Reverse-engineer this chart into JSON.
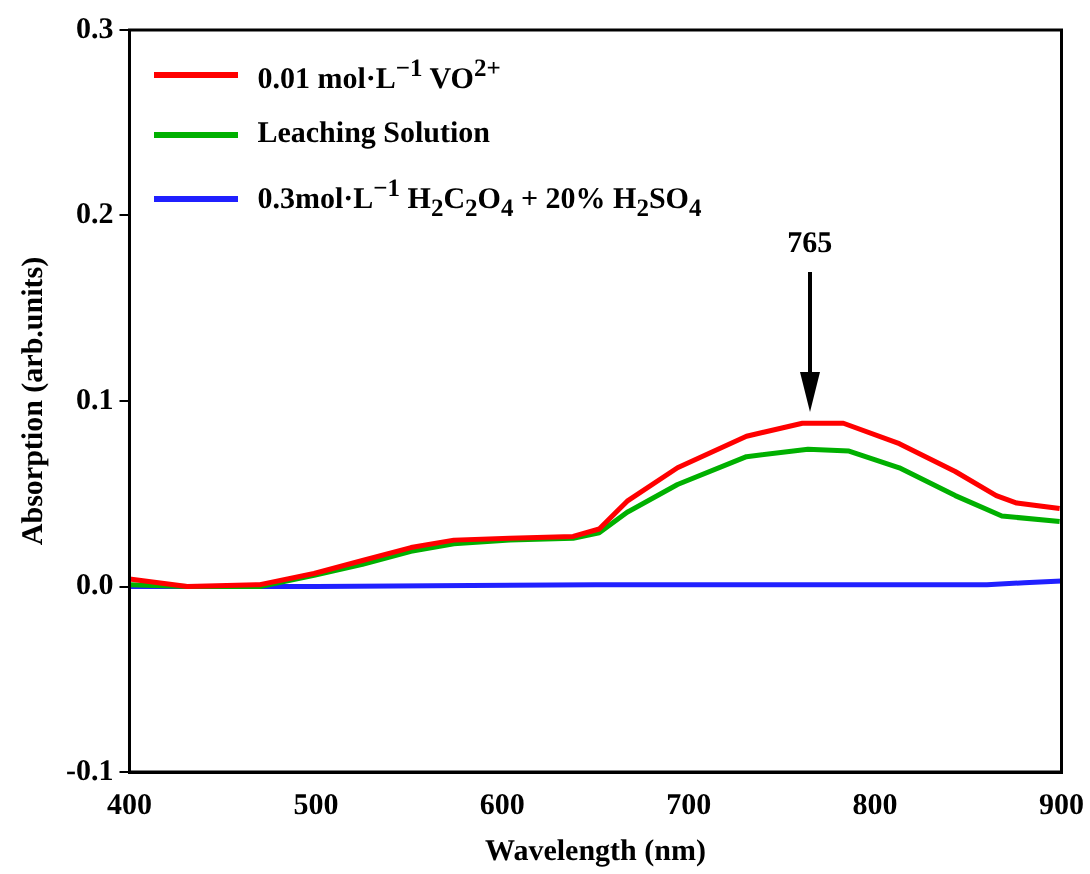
{
  "chart_data": {
    "type": "line",
    "xlabel": "Wavelength (nm)",
    "ylabel": "Absorption (arb.units)",
    "xlim": [
      400,
      900
    ],
    "xticks": [
      400,
      500,
      600,
      700,
      800,
      900
    ],
    "ylim": [
      -0.1,
      0.3
    ],
    "yticks": [
      -0.1,
      {
        "value": 0,
        "label": "0.0"
      },
      0.1,
      0.2,
      0.3
    ],
    "grid": false,
    "legend": "top left",
    "marker": "none",
    "line_style": "solid",
    "annotations": [
      "765"
    ],
    "series": [
      {
        "name": "0.01 mol·L$^{−1}$ VO$^{2+}$",
        "color": "#ff0000",
        "x": [
          400,
          431,
          470,
          499,
          525,
          551,
          574,
          604,
          638,
          652,
          667,
          694,
          731,
          761,
          783,
          813,
          843,
          865,
          876,
          899
        ],
        "values": [
          0.004,
          0.0,
          0.001,
          0.007,
          0.014,
          0.021,
          0.025,
          0.026,
          0.027,
          0.031,
          0.046,
          0.064,
          0.081,
          0.088,
          0.088,
          0.077,
          0.062,
          0.049,
          0.045,
          0.042
        ]
      },
      {
        "name": "Leaching Solution",
        "color": "#00b000",
        "x": [
          400,
          431,
          470,
          499,
          525,
          551,
          574,
          604,
          638,
          652,
          667,
          694,
          731,
          764,
          786,
          813,
          843,
          868,
          899
        ],
        "values": [
          0.001,
          0.0,
          0.0,
          0.006,
          0.012,
          0.019,
          0.023,
          0.025,
          0.026,
          0.029,
          0.04,
          0.055,
          0.07,
          0.074,
          0.073,
          0.064,
          0.049,
          0.038,
          0.035
        ]
      },
      {
        "name": "0.3mol·L$^{−1}$ H$_{2}$C$_{2}$O$_{4}$ + 20% H$_{2}$SO$_{4}$",
        "color": "#2020ff",
        "x": [
          400,
          500,
          650,
          800,
          860,
          880,
          900
        ],
        "values": [
          0.0,
          0.0,
          0.001,
          0.001,
          0.001,
          0.002,
          0.003
        ]
      }
    ]
  }
}
